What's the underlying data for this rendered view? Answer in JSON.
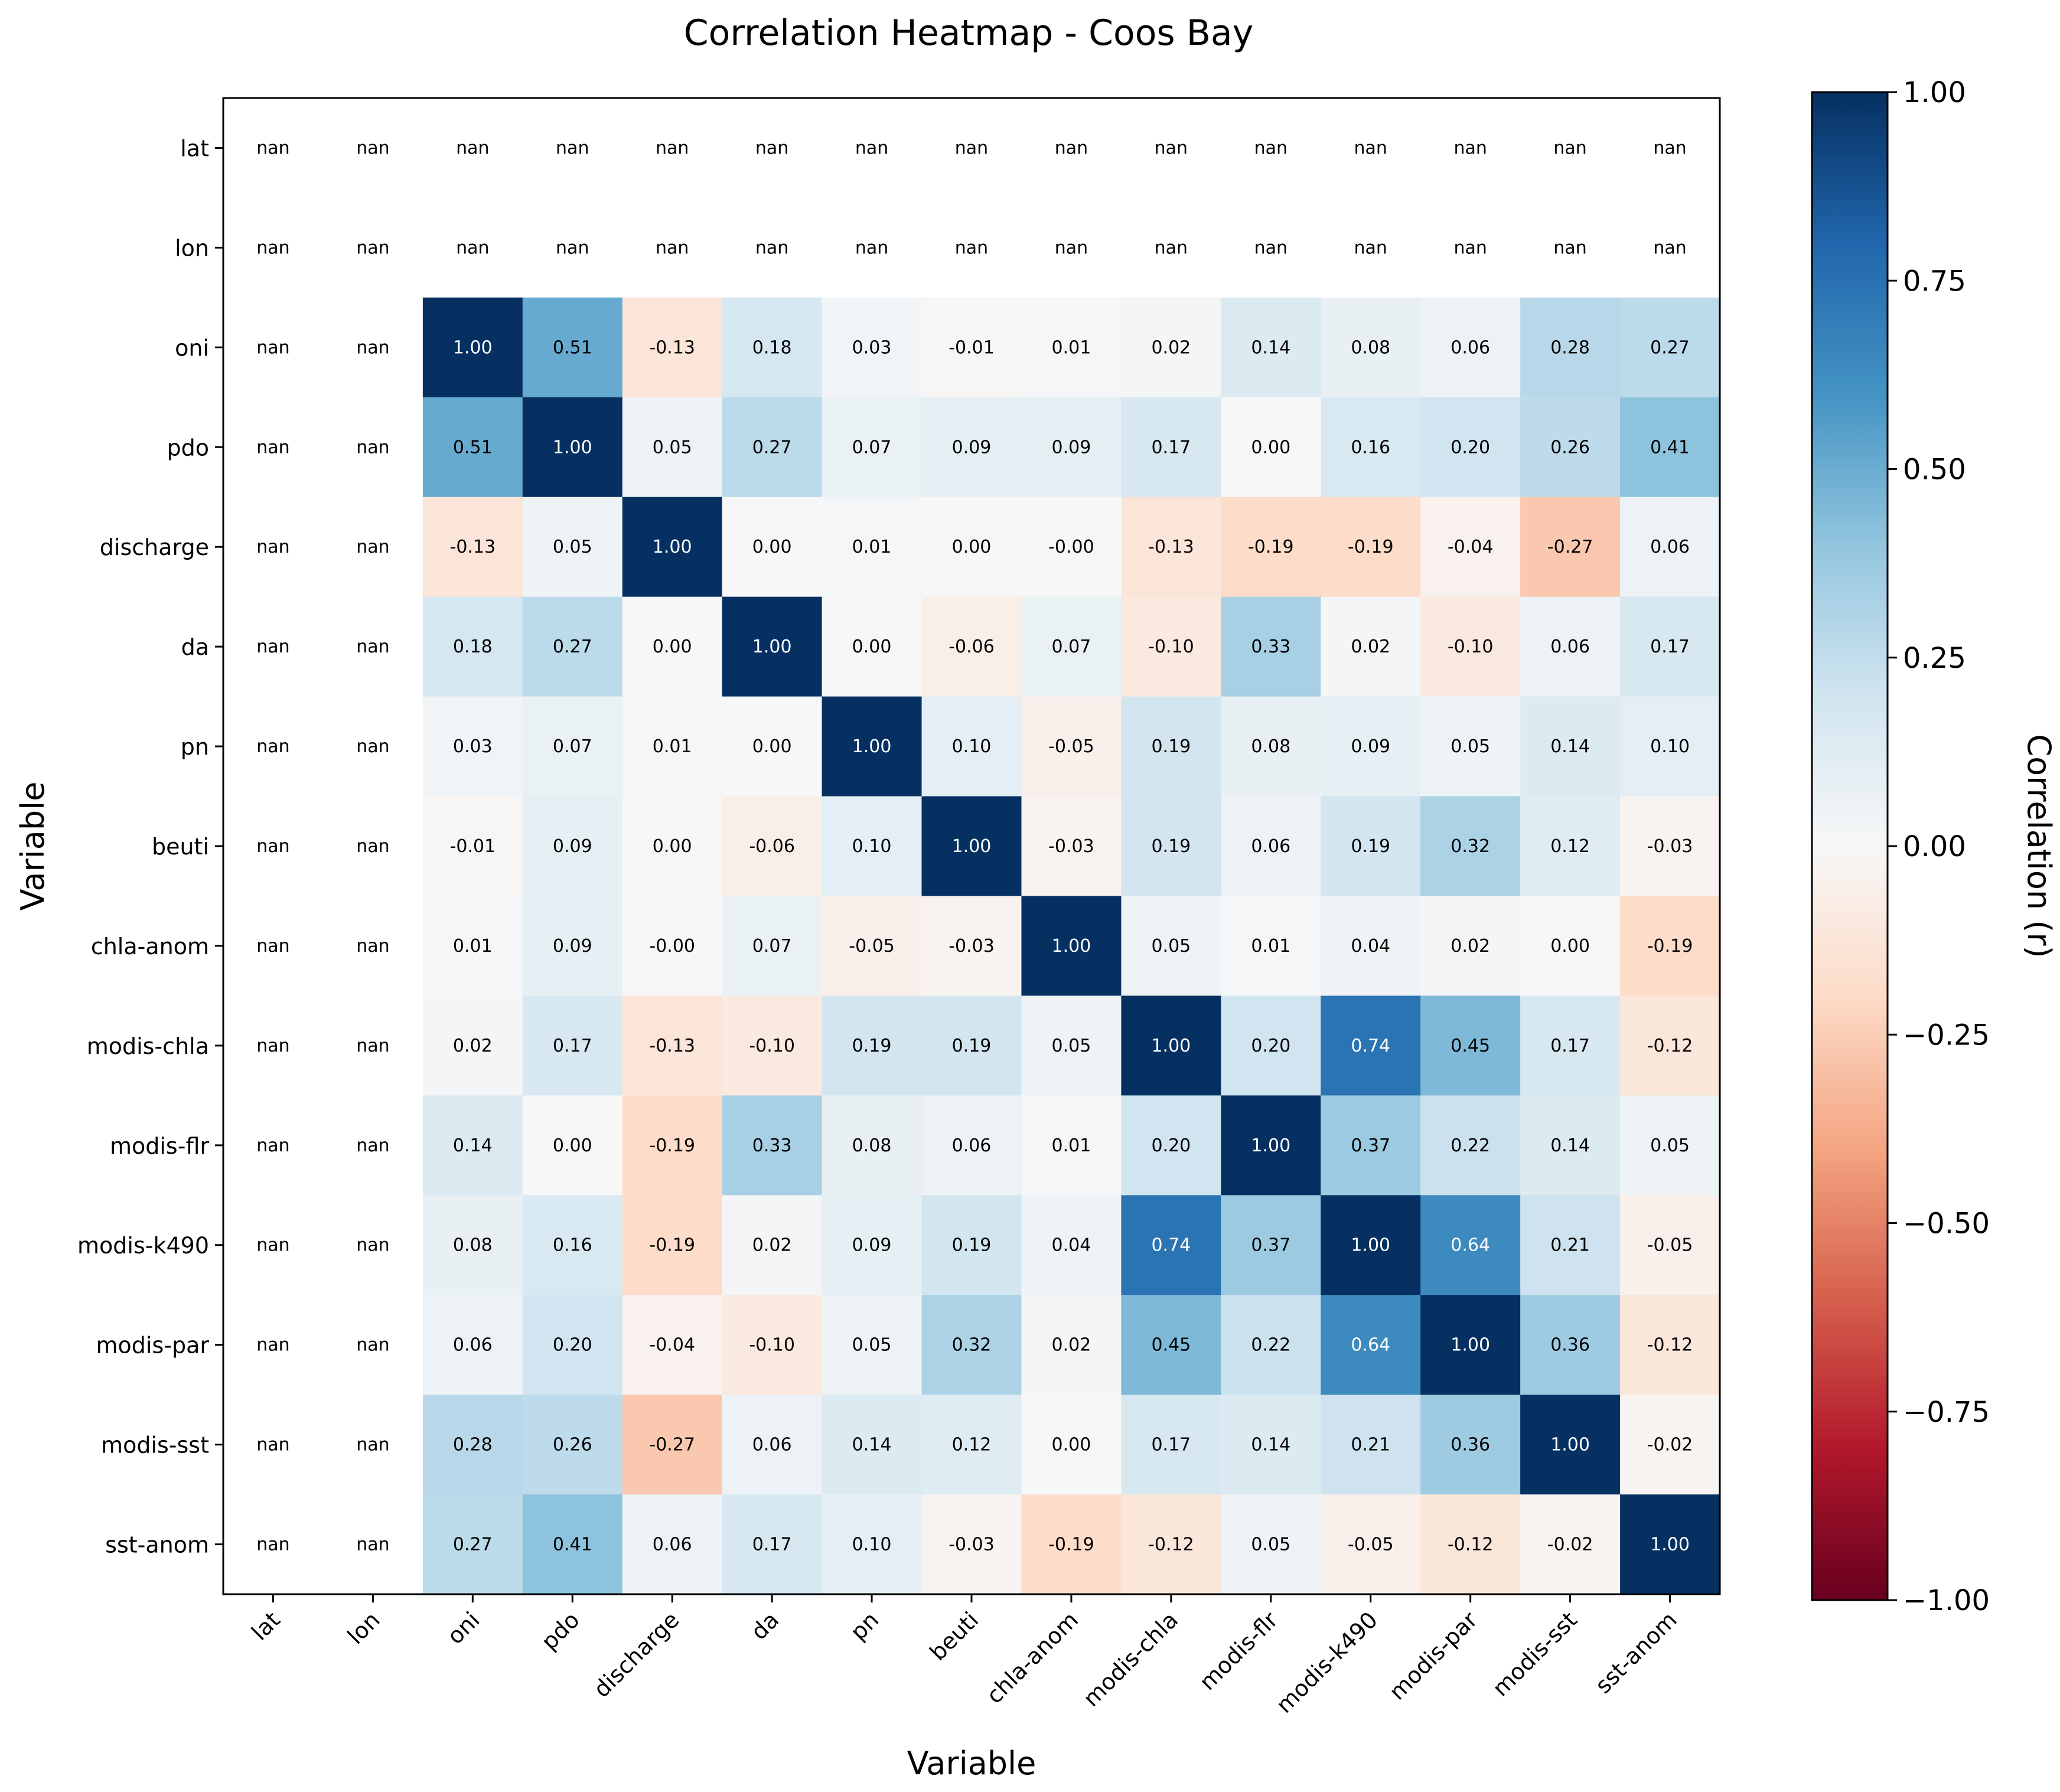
{
  "chart_data": {
    "type": "heatmap",
    "title": "Correlation Heatmap - Coos Bay",
    "xlabel": "Variable",
    "ylabel": "Variable",
    "variables": [
      "lat",
      "lon",
      "oni",
      "pdo",
      "discharge",
      "da",
      "pn",
      "beuti",
      "chla-anom",
      "modis-chla",
      "modis-flr",
      "modis-k490",
      "modis-par",
      "modis-sst",
      "sst-anom"
    ],
    "matrix": [
      [
        null,
        null,
        null,
        null,
        null,
        null,
        null,
        null,
        null,
        null,
        null,
        null,
        null,
        null,
        null
      ],
      [
        null,
        null,
        null,
        null,
        null,
        null,
        null,
        null,
        null,
        null,
        null,
        null,
        null,
        null,
        null
      ],
      [
        null,
        null,
        1.0,
        0.51,
        -0.13,
        0.18,
        0.03,
        -0.01,
        0.01,
        0.02,
        0.14,
        0.08,
        0.06,
        0.28,
        0.27
      ],
      [
        null,
        null,
        0.51,
        1.0,
        0.05,
        0.27,
        0.07,
        0.09,
        0.09,
        0.17,
        0.0,
        0.16,
        0.2,
        0.26,
        0.41
      ],
      [
        null,
        null,
        -0.13,
        0.05,
        1.0,
        0.0,
        0.01,
        0.0,
        -0.0,
        -0.13,
        -0.19,
        -0.19,
        -0.04,
        -0.27,
        0.06
      ],
      [
        null,
        null,
        0.18,
        0.27,
        0.0,
        1.0,
        0.0,
        -0.06,
        0.07,
        -0.1,
        0.33,
        0.02,
        -0.1,
        0.06,
        0.17
      ],
      [
        null,
        null,
        0.03,
        0.07,
        0.01,
        0.0,
        1.0,
        0.1,
        -0.05,
        0.19,
        0.08,
        0.09,
        0.05,
        0.14,
        0.1
      ],
      [
        null,
        null,
        -0.01,
        0.09,
        0.0,
        -0.06,
        0.1,
        1.0,
        -0.03,
        0.19,
        0.06,
        0.19,
        0.32,
        0.12,
        -0.03
      ],
      [
        null,
        null,
        0.01,
        0.09,
        -0.0,
        0.07,
        -0.05,
        -0.03,
        1.0,
        0.05,
        0.01,
        0.04,
        0.02,
        0.0,
        -0.19
      ],
      [
        null,
        null,
        0.02,
        0.17,
        -0.13,
        -0.1,
        0.19,
        0.19,
        0.05,
        1.0,
        0.2,
        0.74,
        0.45,
        0.17,
        -0.12
      ],
      [
        null,
        null,
        0.14,
        0.0,
        -0.19,
        0.33,
        0.08,
        0.06,
        0.01,
        0.2,
        1.0,
        0.37,
        0.22,
        0.14,
        0.05
      ],
      [
        null,
        null,
        0.08,
        0.16,
        -0.19,
        0.02,
        0.09,
        0.19,
        0.04,
        0.74,
        0.37,
        1.0,
        0.64,
        0.21,
        -0.05
      ],
      [
        null,
        null,
        0.06,
        0.2,
        -0.04,
        -0.1,
        0.05,
        0.32,
        0.02,
        0.45,
        0.22,
        0.64,
        1.0,
        0.36,
        -0.12
      ],
      [
        null,
        null,
        0.28,
        0.26,
        -0.27,
        0.06,
        0.14,
        0.12,
        0.0,
        0.17,
        0.14,
        0.21,
        0.36,
        1.0,
        -0.02
      ],
      [
        null,
        null,
        0.27,
        0.41,
        0.06,
        0.17,
        0.1,
        -0.03,
        -0.19,
        -0.12,
        0.05,
        -0.05,
        -0.12,
        -0.02,
        1.0
      ]
    ],
    "missing_label": "nan",
    "value_format_decimals": 2,
    "colormap": "RdBu",
    "vmin": -1.0,
    "vmax": 1.0,
    "colorbar": {
      "label": "Correlation (r)",
      "ticks": [
        1.0,
        0.75,
        0.5,
        0.25,
        0.0,
        -0.25,
        -0.5,
        -0.75,
        -1.0
      ],
      "tick_labels": [
        "1.00",
        "0.75",
        "0.50",
        "0.25",
        "0.00",
        "−0.25",
        "−0.50",
        "−0.75",
        "−1.00"
      ]
    },
    "colors": {
      "rdbu_stops": [
        "#67001f",
        "#b2182b",
        "#d6604d",
        "#f4a582",
        "#fddbc7",
        "#f7f7f7",
        "#d1e5f0",
        "#92c5de",
        "#4393c3",
        "#2166ac",
        "#053061"
      ],
      "text_dark": "#000000",
      "text_light": "#ffffff",
      "nan_cell": "#ffffff"
    }
  }
}
